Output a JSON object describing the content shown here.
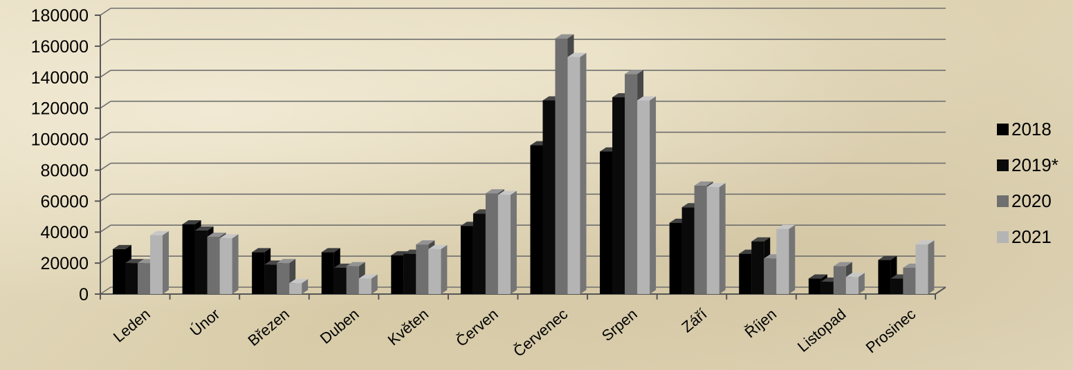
{
  "chart_data": {
    "type": "bar",
    "title": "",
    "xlabel": "",
    "ylabel": "",
    "ylim": [
      0,
      180000
    ],
    "yticks": [
      0,
      20000,
      40000,
      60000,
      80000,
      100000,
      120000,
      140000,
      160000,
      180000
    ],
    "grid": true,
    "legend_position": "right",
    "categories": [
      "Leden",
      "Únor",
      "Březen",
      "Duben",
      "Květen",
      "Červen",
      "Červenec",
      "Srpen",
      "Září",
      "Říjen",
      "Listopad",
      "Prosinec"
    ],
    "series": [
      {
        "name": "2018",
        "color": "#000000",
        "values": [
          29000,
          45000,
          27000,
          27000,
          25000,
          44000,
          96000,
          92000,
          46000,
          26000,
          10000,
          22000
        ]
      },
      {
        "name": "2019*",
        "color": "#0a0a0a",
        "values": [
          20000,
          41000,
          19000,
          17000,
          26000,
          52000,
          125000,
          127000,
          56000,
          34000,
          8000,
          10000
        ]
      },
      {
        "name": "2020",
        "color": "#6f6f6f",
        "values": [
          20000,
          37000,
          20000,
          18000,
          32000,
          65000,
          165000,
          142000,
          70000,
          23000,
          18000,
          17000
        ]
      },
      {
        "name": "2021",
        "color": "#b4b4b4",
        "values": [
          38000,
          36000,
          7000,
          10000,
          29000,
          64000,
          153000,
          125000,
          69000,
          42000,
          11000,
          32000
        ]
      }
    ]
  }
}
